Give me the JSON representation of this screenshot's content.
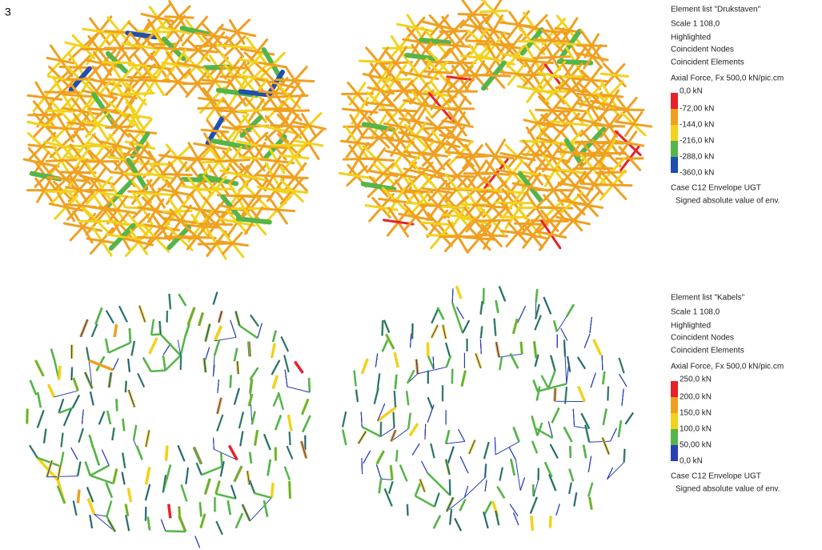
{
  "figure_number": "3",
  "panels": [
    {
      "legend": {
        "lines": [
          "Element list \"Drukstaven\"",
          "Scale 1 108,0",
          "Highlighted",
          "Coincident Nodes",
          "Coincident Elements",
          "Axial Force, Fx  500,0 kN/pic.cm"
        ],
        "scale_labels": [
          "0,0 kN",
          "-72,00 kN",
          "-144,0 kN",
          "-216,0 kN",
          "-288,0 kN",
          "-360,0 kN"
        ],
        "colors": [
          "#e8202a",
          "#f0a020",
          "#f2d21a",
          "#55b548",
          "#1f4fb0"
        ],
        "case": "Case  C12   Envelope UGT",
        "note": "Signed absolute value of env."
      }
    },
    {
      "legend": {
        "lines": [
          "Element list \"Kabels\"",
          "Scale 1 108,0",
          "Highlighted",
          "Coincident Nodes",
          "Coincident Elements",
          "Axial Force, Fx  500,0 kN/pic.cm"
        ],
        "scale_labels": [
          "250,0 kN",
          "200,0 kN",
          "150,0 kN",
          "100,0 kN",
          "50,00 kN",
          "0,0 kN"
        ],
        "colors": [
          "#e8202a",
          "#f0a020",
          "#f2d21a",
          "#55b548",
          "#2a3fb5"
        ],
        "case": "Case  C12   Envelope UGT",
        "note": "Signed absolute value of env."
      }
    }
  ]
}
